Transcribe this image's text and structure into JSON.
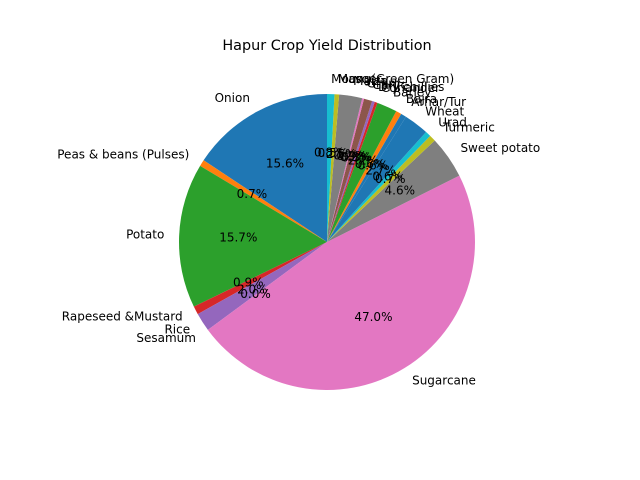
{
  "chart_data": {
    "type": "pie",
    "title": "Hapur Crop Yield Distribution",
    "start_angle_deg": 90,
    "direction": "counterclockwise",
    "pct_format": "%1.1f%%",
    "slices": [
      {
        "label": "Onion",
        "value": 15.6,
        "pct_text": "15.6%",
        "color": "#1f77b4"
      },
      {
        "label": "Peas & beans (Pulses)",
        "value": 0.7,
        "pct_text": "0.7%",
        "color": "#ff7f0e"
      },
      {
        "label": "Potato",
        "value": 15.7,
        "pct_text": "15.7%",
        "color": "#2ca02c"
      },
      {
        "label": "Rapeseed &Mustard",
        "value": 0.9,
        "pct_text": "0.9%",
        "color": "#d62728"
      },
      {
        "label": "Rice",
        "value": 2.0,
        "pct_text": "2.0%",
        "color": "#9467bd"
      },
      {
        "label": "Sesamum",
        "value": 0.0,
        "pct_text": "0.0%",
        "color": "#8c564b"
      },
      {
        "label": "Sugarcane",
        "value": 47.0,
        "pct_text": "47.0%",
        "color": "#e377c2"
      },
      {
        "label": "Sweet potato",
        "value": 4.6,
        "pct_text": "4.6%",
        "color": "#7f7f7f"
      },
      {
        "label": "Turmeric",
        "value": 0.7,
        "pct_text": "0.7%",
        "color": "#bcbd22"
      },
      {
        "label": "Urad",
        "value": 0.6,
        "pct_text": "0.6%",
        "color": "#17becf"
      },
      {
        "label": "Wheat",
        "value": 2.7,
        "pct_text": "2.7%",
        "color": "#1f77b4"
      },
      {
        "label": "Arhar/Tur",
        "value": 0.6,
        "pct_text": "0.6%",
        "color": "#1f77b4"
      },
      {
        "label": "Bajra",
        "value": 0.6,
        "pct_text": "0.6%",
        "color": "#ff7f0e"
      },
      {
        "label": "Barley",
        "value": 2.2,
        "pct_text": "2.2%",
        "color": "#2ca02c"
      },
      {
        "label": "Coriander",
        "value": 0.3,
        "pct_text": "0.3%",
        "color": "#d62728"
      },
      {
        "label": "Dry chillies",
        "value": 0.3,
        "pct_text": "0.3%",
        "color": "#9467bd"
      },
      {
        "label": "Garlic",
        "value": 0.9,
        "pct_text": "0.9%",
        "color": "#8c564b"
      },
      {
        "label": "Gram",
        "value": 0.2,
        "pct_text": "0.2%",
        "color": "#e377c2"
      },
      {
        "label": "Maize",
        "value": 2.5,
        "pct_text": "2.5%",
        "color": "#7f7f7f"
      },
      {
        "label": "Masoor",
        "value": 0.5,
        "pct_text": "0.5%",
        "color": "#bcbd22"
      },
      {
        "label": "Moong(Green Gram)",
        "value": 0.8,
        "pct_text": "0.8%",
        "color": "#17becf"
      }
    ]
  }
}
